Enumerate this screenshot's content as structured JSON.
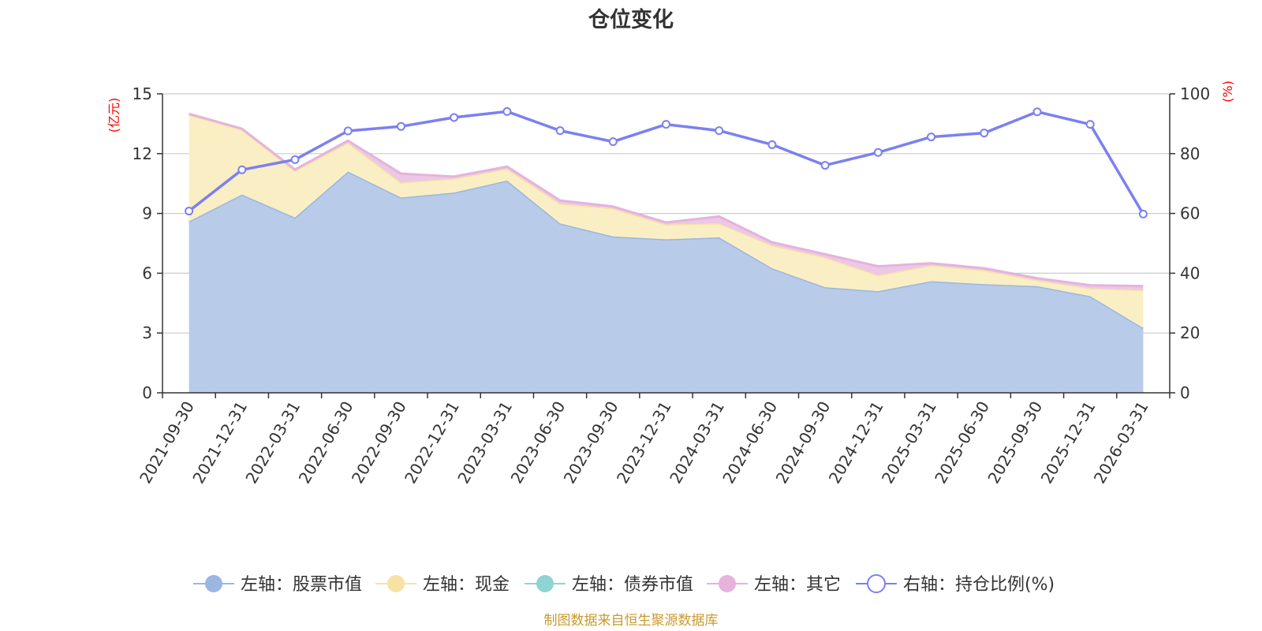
{
  "chart_data": {
    "type": "area",
    "title": "仓位变化",
    "left_axis_unit": "(亿元)",
    "right_axis_unit": "(%)",
    "x": [
      "2021-09-30",
      "2021-12-31",
      "2022-03-31",
      "2022-06-30",
      "2022-09-30",
      "2022-12-31",
      "2023-03-31",
      "2023-06-30",
      "2023-09-30",
      "2023-12-31",
      "2024-03-31",
      "2024-06-30",
      "2024-09-30",
      "2024-12-31",
      "2025-03-31",
      "2025-06-30",
      "2025-09-30",
      "2025-12-31",
      "2026-03-31"
    ],
    "left_axis": {
      "min": 0,
      "max": 15,
      "ticks": [
        0,
        3,
        6,
        9,
        12,
        15
      ]
    },
    "right_axis": {
      "min": 0,
      "max": 100,
      "ticks": [
        0,
        20,
        40,
        60,
        80,
        100
      ]
    },
    "grid": true,
    "legend_position": "bottom",
    "series": [
      {
        "name": "左轴：股票市值",
        "axis": "left",
        "stack": "total",
        "color": "#9bb6e0",
        "fill": "#b8cbe9",
        "values": [
          8.6,
          9.95,
          8.8,
          11.1,
          9.8,
          10.05,
          10.65,
          8.5,
          7.85,
          7.7,
          7.8,
          6.25,
          5.3,
          5.1,
          5.6,
          5.45,
          5.35,
          4.85,
          3.25
        ]
      },
      {
        "name": "左轴：现金",
        "axis": "left",
        "stack": "total",
        "color": "#f6e3a4",
        "fill": "#faefc4",
        "values": [
          5.35,
          3.25,
          2.35,
          1.45,
          0.75,
          0.7,
          0.6,
          1.0,
          1.4,
          0.75,
          0.7,
          1.15,
          1.5,
          0.8,
          0.8,
          0.7,
          0.3,
          0.4,
          1.9
        ]
      },
      {
        "name": "左轴：债券市值",
        "axis": "left",
        "stack": "total",
        "color": "#8fd3d3",
        "fill": "#b7e4e4",
        "values": [
          0,
          0,
          0,
          0,
          0,
          0,
          0,
          0,
          0,
          0,
          0,
          0,
          0,
          0,
          0,
          0,
          0,
          0,
          0
        ]
      },
      {
        "name": "左轴：其它",
        "axis": "left",
        "stack": "total",
        "color": "#e5b3dc",
        "fill": "#ecc8e6",
        "values": [
          0.05,
          0.05,
          0.05,
          0.1,
          0.45,
          0.1,
          0.1,
          0.15,
          0.1,
          0.1,
          0.35,
          0.15,
          0.15,
          0.45,
          0.1,
          0.1,
          0.1,
          0.15,
          0.2
        ]
      },
      {
        "name": "右轴：持仓比例(%)",
        "axis": "right",
        "type": "line",
        "color": "#7b80f0",
        "values": [
          60.8,
          74.6,
          78.0,
          87.6,
          89.1,
          92.1,
          94.1,
          87.7,
          84.0,
          89.8,
          87.7,
          83.0,
          76.1,
          80.4,
          85.6,
          86.9,
          94.0,
          89.8,
          59.8
        ]
      }
    ],
    "source": "制图数据来自恒生聚源数据库"
  }
}
